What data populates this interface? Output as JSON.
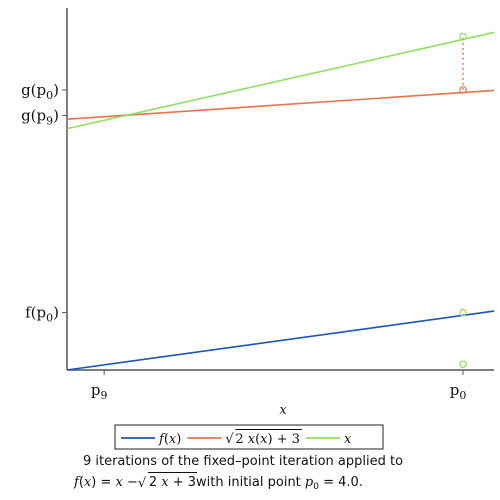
{
  "chart_data": {
    "type": "line",
    "xlabel": "x",
    "xlim": [
      2.85,
      4.09
    ],
    "ylim": [
      -0.02,
      1.24
    ],
    "series": [
      {
        "name": "f(x)",
        "color": "#1a56b8",
        "points": [
          [
            2.85,
            -0.02
          ],
          [
            4.09,
            0.185
          ]
        ]
      },
      {
        "name": "√(2 x(x) + 3)",
        "color": "#e8734a",
        "points": [
          [
            2.85,
            0.853
          ],
          [
            4.09,
            0.953
          ]
        ]
      },
      {
        "name": "x",
        "color": "#90e05f",
        "points": [
          [
            2.85,
            0.82
          ],
          [
            4.09,
            1.155
          ]
        ]
      }
    ],
    "x_ticks": [
      {
        "value": 2.958,
        "base": "p",
        "sub": "9"
      },
      {
        "value": 4.0,
        "base": "p",
        "sub": "0"
      }
    ],
    "y_ticks": [
      {
        "value": 0.18,
        "base": "f(p",
        "sub": "0",
        "close": ")"
      },
      {
        "value": 0.866,
        "base": "g(p",
        "sub": "9",
        "close": ")"
      },
      {
        "value": 0.955,
        "base": "g(p",
        "sub": "0",
        "close": ")"
      }
    ],
    "markers": [
      {
        "x": 4.0,
        "y": 0.0,
        "color": "#90e05f"
      },
      {
        "x": 4.0,
        "y": 0.18,
        "color": "#90e05f"
      },
      {
        "x": 4.0,
        "y": 0.955,
        "color": "#e8734a"
      },
      {
        "x": 4.0,
        "y": 1.14,
        "color": "#90e05f"
      }
    ],
    "connector": {
      "x": 4.0,
      "y1": 0.955,
      "y2": 1.14,
      "color": "#e8734a"
    },
    "legend": {
      "placement": "bottom",
      "entries": [
        {
          "label_parts": [
            {
              "t": "f",
              "i": true
            },
            {
              "t": "(",
              "i": false
            },
            {
              "t": "x",
              "i": true
            },
            {
              "t": ")",
              "i": false
            }
          ],
          "color": "#1a56b8"
        },
        {
          "label_parts": [
            {
              "t": "2 ",
              "i": false
            },
            {
              "t": "x",
              "i": true
            },
            {
              "t": "(",
              "i": false
            },
            {
              "t": "x",
              "i": true
            },
            {
              "t": ") + 3",
              "i": false
            }
          ],
          "sqrt": true,
          "color": "#e8734a"
        },
        {
          "label_parts": [
            {
              "t": "x",
              "i": true
            }
          ],
          "color": "#90e05f"
        }
      ]
    },
    "caption": {
      "line1": "9 iterations of the fixed–point iteration applied to",
      "line2_parts": [
        {
          "t": "f",
          "i": true
        },
        {
          "t": "(",
          "i": false
        },
        {
          "t": "x",
          "i": true
        },
        {
          "t": ") = ",
          "i": false
        },
        {
          "t": "x",
          "i": true
        },
        {
          "t": " − ",
          "i": false
        }
      ],
      "line2_sqrt": "2 x + 3",
      "line2_tail_parts": [
        {
          "t": " with initial point ",
          "i": false
        },
        {
          "t": "p",
          "i": true
        }
      ],
      "line2_sub": "0",
      "line2_end": " = 4.0."
    }
  }
}
